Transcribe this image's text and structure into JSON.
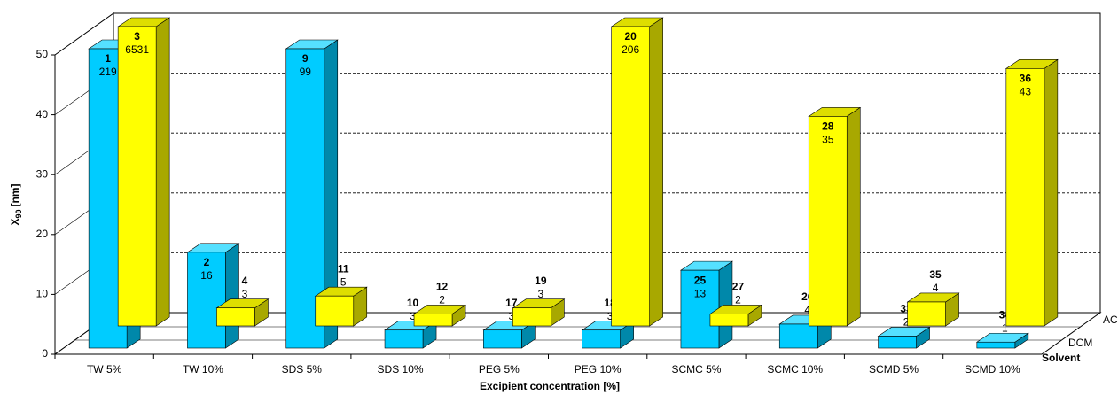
{
  "chart_data": {
    "type": "bar3d",
    "x_label": "Excipient concentration [%]",
    "y_label_main": "X",
    "y_label_sub": "90",
    "y_label_unit": "[nm]",
    "z_label": "Solvent",
    "categories": [
      "TW 5%",
      "TW 10%",
      "SDS 5%",
      "SDS 10%",
      "PEG 5%",
      "PEG 10%",
      "SCMC 5%",
      "SCMC 10%",
      "SCMD 5%",
      "SCMD 10%"
    ],
    "series": [
      {
        "name": "DCM",
        "color": "#00ccff",
        "side": "#0088aa",
        "top": "#55e0ff",
        "ids": [
          "1",
          "2",
          "9",
          "10",
          "17",
          "18",
          "25",
          "26",
          "33",
          "34"
        ],
        "values": [
          219,
          16,
          99,
          3,
          3,
          3,
          13,
          4,
          2,
          1
        ]
      },
      {
        "name": "AC",
        "color": "#ffff00",
        "side": "#a8a800",
        "top": "#dede00",
        "ids": [
          "3",
          "4",
          "11",
          "12",
          "19",
          "20",
          "27",
          "28",
          "35",
          "36"
        ],
        "values": [
          6531,
          3,
          5,
          2,
          3,
          206,
          2,
          35,
          4,
          43
        ]
      }
    ],
    "ylim": [
      0,
      50
    ],
    "yticks": [
      0,
      10,
      20,
      30,
      40,
      50
    ],
    "grid": true
  }
}
